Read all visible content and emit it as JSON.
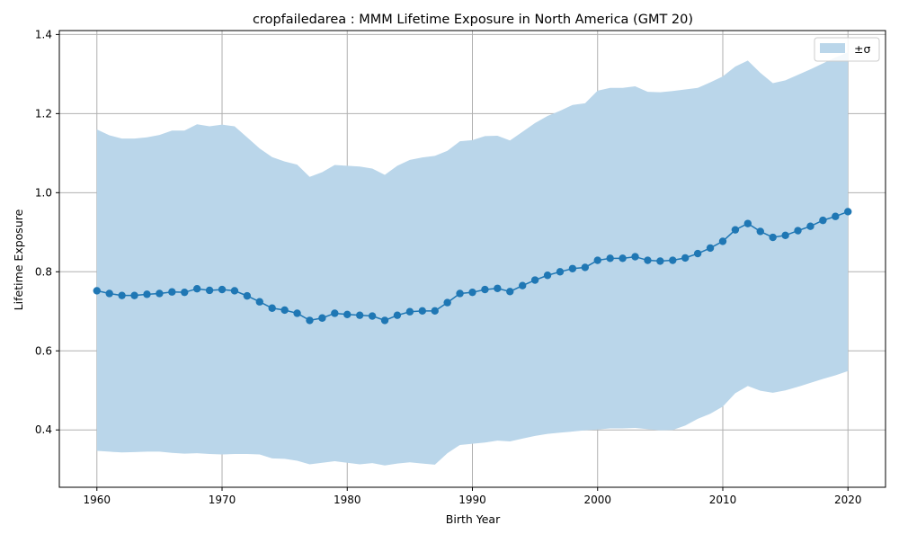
{
  "chart_data": {
    "type": "line",
    "title": "cropfailedarea : MMM Lifetime Exposure in North America (GMT 20)",
    "xlabel": "Birth Year",
    "ylabel": "Lifetime Exposure",
    "xlim": [
      1957,
      2023
    ],
    "ylim": [
      0.255,
      1.41
    ],
    "xticks": [
      1960,
      1970,
      1980,
      1990,
      2000,
      2010,
      2020
    ],
    "yticks": [
      0.4,
      0.6,
      0.8,
      1.0,
      1.2,
      1.4
    ],
    "xtick_labels": [
      "1960",
      "1970",
      "1980",
      "1990",
      "2000",
      "2010",
      "2020"
    ],
    "ytick_labels": [
      "0.4",
      "0.6",
      "0.8",
      "1.0",
      "1.2",
      "1.4"
    ],
    "grid": true,
    "legend_position": "upper right",
    "colors": {
      "line": "#1f77b4",
      "band": "#bad6ea",
      "grid": "#b0b0b0"
    },
    "x": [
      1960,
      1961,
      1962,
      1963,
      1964,
      1965,
      1966,
      1967,
      1968,
      1969,
      1970,
      1971,
      1972,
      1973,
      1974,
      1975,
      1976,
      1977,
      1978,
      1979,
      1980,
      1981,
      1982,
      1983,
      1984,
      1985,
      1986,
      1987,
      1988,
      1989,
      1990,
      1991,
      1992,
      1993,
      1994,
      1995,
      1996,
      1997,
      1998,
      1999,
      2000,
      2001,
      2002,
      2003,
      2004,
      2005,
      2006,
      2007,
      2008,
      2009,
      2010,
      2011,
      2012,
      2013,
      2014,
      2015,
      2016,
      2017,
      2018,
      2019,
      2020
    ],
    "series": [
      {
        "values": [
          0.752,
          0.745,
          0.74,
          0.74,
          0.743,
          0.745,
          0.749,
          0.748,
          0.757,
          0.753,
          0.755,
          0.752,
          0.739,
          0.724,
          0.708,
          0.703,
          0.695,
          0.677,
          0.683,
          0.695,
          0.692,
          0.69,
          0.688,
          0.677,
          0.69,
          0.699,
          0.701,
          0.701,
          0.722,
          0.745,
          0.748,
          0.755,
          0.758,
          0.75,
          0.765,
          0.779,
          0.791,
          0.8,
          0.808,
          0.811,
          0.829,
          0.834,
          0.834,
          0.838,
          0.829,
          0.827,
          0.829,
          0.835,
          0.846,
          0.86,
          0.877,
          0.906,
          0.922,
          0.902,
          0.887,
          0.892,
          0.904,
          0.915,
          0.93,
          0.94,
          0.952
        ]
      }
    ],
    "band": {
      "name": "±σ",
      "upper": [
        1.16,
        1.145,
        1.137,
        1.137,
        1.14,
        1.146,
        1.157,
        1.157,
        1.173,
        1.168,
        1.172,
        1.168,
        1.14,
        1.112,
        1.09,
        1.079,
        1.071,
        1.04,
        1.052,
        1.07,
        1.068,
        1.066,
        1.061,
        1.045,
        1.068,
        1.083,
        1.089,
        1.093,
        1.106,
        1.13,
        1.133,
        1.143,
        1.144,
        1.132,
        1.154,
        1.176,
        1.194,
        1.207,
        1.222,
        1.226,
        1.258,
        1.265,
        1.265,
        1.269,
        1.255,
        1.254,
        1.257,
        1.261,
        1.265,
        1.279,
        1.294,
        1.319,
        1.334,
        1.303,
        1.277,
        1.284,
        1.298,
        1.312,
        1.327,
        1.342,
        1.355
      ],
      "lower": [
        0.347,
        0.345,
        0.343,
        0.344,
        0.345,
        0.345,
        0.342,
        0.34,
        0.341,
        0.339,
        0.338,
        0.339,
        0.339,
        0.338,
        0.328,
        0.327,
        0.322,
        0.313,
        0.317,
        0.321,
        0.317,
        0.313,
        0.316,
        0.31,
        0.315,
        0.318,
        0.315,
        0.312,
        0.341,
        0.362,
        0.365,
        0.368,
        0.373,
        0.371,
        0.378,
        0.385,
        0.39,
        0.393,
        0.396,
        0.399,
        0.401,
        0.404,
        0.404,
        0.405,
        0.402,
        0.399,
        0.4,
        0.411,
        0.428,
        0.441,
        0.459,
        0.493,
        0.511,
        0.499,
        0.494,
        0.5,
        0.509,
        0.519,
        0.529,
        0.538,
        0.549
      ]
    }
  }
}
